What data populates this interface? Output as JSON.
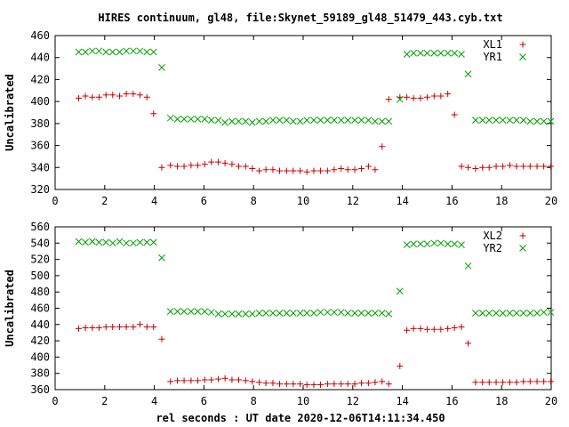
{
  "title": "HIRES continuum, gl48, file:Skynet_59189_gl48_51479_443.cyb.txt",
  "xlabel": "rel seconds : UT date 2020-12-06T14:11:34.450",
  "colors": {
    "red": "#c80000",
    "green": "#00a000"
  },
  "chart_data": [
    {
      "type": "scatter",
      "ylabel": "Uncalibrated",
      "xlim": [
        0,
        20
      ],
      "ylim": [
        320,
        460
      ],
      "xticks": [
        0,
        2,
        4,
        6,
        8,
        10,
        12,
        14,
        16,
        18,
        20
      ],
      "yticks": [
        320,
        340,
        360,
        380,
        400,
        420,
        440,
        460
      ],
      "legend_position": "top-right",
      "grid": false,
      "series": [
        {
          "name": "XL1",
          "marker": "plus",
          "color": "#c80000",
          "x": [
            0.95,
            1.22,
            1.5,
            1.77,
            2.05,
            2.32,
            2.6,
            2.87,
            3.15,
            3.42,
            3.7,
            3.97,
            4.3,
            4.65,
            4.93,
            5.2,
            5.48,
            5.75,
            6.03,
            6.3,
            6.58,
            6.85,
            7.13,
            7.4,
            7.68,
            7.95,
            8.23,
            8.5,
            8.78,
            9.05,
            9.33,
            9.6,
            9.88,
            10.15,
            10.43,
            10.7,
            10.98,
            11.25,
            11.53,
            11.8,
            12.08,
            12.35,
            12.63,
            12.9,
            13.18,
            13.45,
            13.75,
            14.05,
            14.3,
            14.6,
            14.88,
            15.15,
            15.43,
            15.7,
            15.98,
            16.25,
            16.53,
            16.85,
            17.15,
            17.45,
            17.73,
            18.0,
            18.28,
            18.55,
            18.83,
            19.1,
            19.38,
            19.65,
            19.93
          ],
          "y": [
            403,
            405,
            404,
            404,
            406,
            406,
            405,
            407,
            407,
            406,
            404,
            389,
            340,
            342,
            341,
            341,
            342,
            342,
            343,
            345,
            345,
            344,
            343,
            341,
            341,
            339,
            337,
            338,
            338,
            337,
            337,
            337,
            337,
            336,
            337,
            337,
            337,
            338,
            339,
            338,
            338,
            339,
            341,
            338,
            359,
            402,
            404,
            404,
            403,
            403,
            404,
            405,
            405,
            407,
            388,
            341,
            340,
            339,
            340,
            340,
            341,
            341,
            342,
            341,
            341,
            341,
            341,
            341,
            341
          ],
          "note": "",
          "xfix": [
            0.95,
            1.22,
            1.5,
            1.77,
            2.05,
            2.32,
            2.6,
            2.87,
            3.15,
            3.42,
            3.7,
            3.97,
            4.3,
            4.65,
            4.93,
            5.2,
            5.48,
            5.75,
            6.03,
            6.3,
            6.58,
            6.85,
            7.13,
            7.4,
            7.68,
            7.95,
            8.23,
            8.5,
            8.78,
            9.05,
            9.33,
            9.6,
            9.88,
            10.15,
            10.43,
            10.7,
            10.98,
            11.25,
            11.53,
            11.8,
            12.08,
            12.35,
            12.63,
            12.9,
            13.18,
            13.45,
            13.9,
            14.18,
            14.45,
            14.73,
            15.0,
            15.28,
            15.55,
            15.83,
            16.1,
            16.38,
            16.65,
            16.95,
            17.23,
            17.5,
            17.78,
            18.05,
            18.33,
            18.6,
            18.88,
            19.15,
            19.43,
            19.7,
            19.98
          ],
          "yfix": [
            403,
            405,
            404,
            404,
            406,
            406,
            405,
            407,
            407,
            406,
            404,
            389,
            340,
            342,
            341,
            341,
            342,
            342,
            343,
            345,
            345,
            344,
            343,
            341,
            341,
            339,
            337,
            338,
            338,
            337,
            337,
            337,
            337,
            336,
            337,
            337,
            337,
            338,
            339,
            338,
            338,
            339,
            341,
            338,
            359,
            402,
            404,
            404,
            403,
            403,
            404,
            405,
            405,
            407,
            388,
            341,
            340,
            339,
            340,
            340,
            341,
            341,
            342,
            341,
            341,
            341,
            341,
            341,
            341
          ]
        },
        {
          "name": "YR1",
          "marker": "cross",
          "color": "#00a000",
          "x": [
            0.95,
            1.22,
            1.5,
            1.77,
            2.05,
            2.32,
            2.6,
            2.87,
            3.15,
            3.42,
            3.7,
            3.97,
            4.3,
            4.65,
            4.93,
            5.2,
            5.48,
            5.75,
            6.03,
            6.3,
            6.58,
            6.85,
            7.13,
            7.4,
            7.68,
            7.95,
            8.23,
            8.5,
            8.78,
            9.05,
            9.33,
            9.6,
            9.88,
            10.15,
            10.43,
            10.7,
            10.98,
            11.25,
            11.53,
            11.8,
            12.08,
            12.35,
            12.63,
            12.9,
            13.18,
            13.45,
            13.9,
            14.18,
            14.45,
            14.73,
            15.0,
            15.28,
            15.55,
            15.83,
            16.1,
            16.38,
            16.65,
            16.95,
            17.23,
            17.5,
            17.78,
            18.05,
            18.33,
            18.6,
            18.88,
            19.15,
            19.43,
            19.7,
            19.98
          ],
          "y": [
            445,
            445,
            446,
            446,
            445,
            445,
            445,
            446,
            446,
            446,
            445,
            445,
            431,
            385,
            384,
            384,
            384,
            384,
            384,
            383,
            383,
            381,
            382,
            382,
            382,
            381,
            382,
            382,
            383,
            383,
            383,
            382,
            382,
            383,
            383,
            383,
            383,
            383,
            383,
            383,
            383,
            383,
            383,
            382,
            382,
            382,
            402,
            443,
            444,
            444,
            444,
            444,
            444,
            444,
            444,
            443,
            425,
            383,
            383,
            383,
            383,
            383,
            383,
            383,
            383,
            382,
            382,
            382,
            382
          ]
        }
      ]
    },
    {
      "type": "scatter",
      "ylabel": "Uncalibrated",
      "xlim": [
        0,
        20
      ],
      "ylim": [
        360,
        560
      ],
      "xticks": [
        0,
        2,
        4,
        6,
        8,
        10,
        12,
        14,
        16,
        18,
        20
      ],
      "yticks": [
        360,
        380,
        400,
        420,
        440,
        460,
        480,
        500,
        520,
        540,
        560
      ],
      "legend_position": "top-right",
      "grid": false,
      "series": [
        {
          "name": "XL2",
          "marker": "plus",
          "color": "#c80000",
          "x": [
            0.95,
            1.22,
            1.5,
            1.77,
            2.05,
            2.32,
            2.6,
            2.87,
            3.15,
            3.42,
            3.7,
            3.97,
            4.3,
            4.65,
            4.93,
            5.2,
            5.48,
            5.75,
            6.03,
            6.3,
            6.58,
            6.85,
            7.13,
            7.4,
            7.68,
            7.95,
            8.23,
            8.5,
            8.78,
            9.05,
            9.33,
            9.6,
            9.88,
            10.15,
            10.43,
            10.7,
            10.98,
            11.25,
            11.53,
            11.8,
            12.08,
            12.35,
            12.63,
            12.9,
            13.18,
            13.45,
            13.9,
            14.18,
            14.45,
            14.73,
            15.0,
            15.28,
            15.55,
            15.83,
            16.1,
            16.38,
            16.65,
            16.95,
            17.23,
            17.5,
            17.78,
            18.05,
            18.33,
            18.6,
            18.88,
            19.15,
            19.43,
            19.7,
            19.98
          ],
          "y": [
            435,
            436,
            436,
            436,
            437,
            437,
            437,
            437,
            437,
            440,
            437,
            437,
            422,
            370,
            371,
            371,
            371,
            371,
            372,
            372,
            373,
            374,
            372,
            372,
            371,
            370,
            369,
            368,
            368,
            367,
            367,
            367,
            367,
            366,
            366,
            366,
            367,
            367,
            367,
            367,
            367,
            368,
            368,
            369,
            370,
            367,
            389,
            433,
            435,
            435,
            434,
            434,
            434,
            435,
            436,
            437,
            417,
            369,
            369,
            369,
            369,
            369,
            369,
            369,
            370,
            370,
            370,
            370,
            370
          ]
        },
        {
          "name": "YR2",
          "marker": "cross",
          "color": "#00a000",
          "x": [
            0.95,
            1.22,
            1.5,
            1.77,
            2.05,
            2.32,
            2.6,
            2.87,
            3.15,
            3.42,
            3.7,
            3.97,
            4.3,
            4.65,
            4.93,
            5.2,
            5.48,
            5.75,
            6.03,
            6.3,
            6.58,
            6.85,
            7.13,
            7.4,
            7.68,
            7.95,
            8.23,
            8.5,
            8.78,
            9.05,
            9.33,
            9.6,
            9.88,
            10.15,
            10.43,
            10.7,
            10.98,
            11.25,
            11.53,
            11.8,
            12.08,
            12.35,
            12.63,
            12.9,
            13.18,
            13.45,
            13.9,
            14.18,
            14.45,
            14.73,
            15.0,
            15.28,
            15.55,
            15.83,
            16.1,
            16.38,
            16.65,
            16.95,
            17.23,
            17.5,
            17.78,
            18.05,
            18.33,
            18.6,
            18.88,
            19.15,
            19.43,
            19.7,
            19.98
          ],
          "y": [
            542,
            541,
            542,
            541,
            541,
            540,
            542,
            540,
            540,
            541,
            541,
            541,
            522,
            456,
            456,
            456,
            456,
            456,
            456,
            455,
            453,
            453,
            453,
            453,
            453,
            453,
            454,
            454,
            454,
            454,
            454,
            454,
            454,
            454,
            454,
            455,
            455,
            455,
            455,
            454,
            454,
            454,
            454,
            454,
            454,
            453,
            481,
            538,
            539,
            539,
            539,
            540,
            540,
            539,
            539,
            538,
            512,
            454,
            454,
            454,
            454,
            454,
            454,
            454,
            454,
            454,
            454,
            455,
            455
          ]
        }
      ]
    }
  ]
}
